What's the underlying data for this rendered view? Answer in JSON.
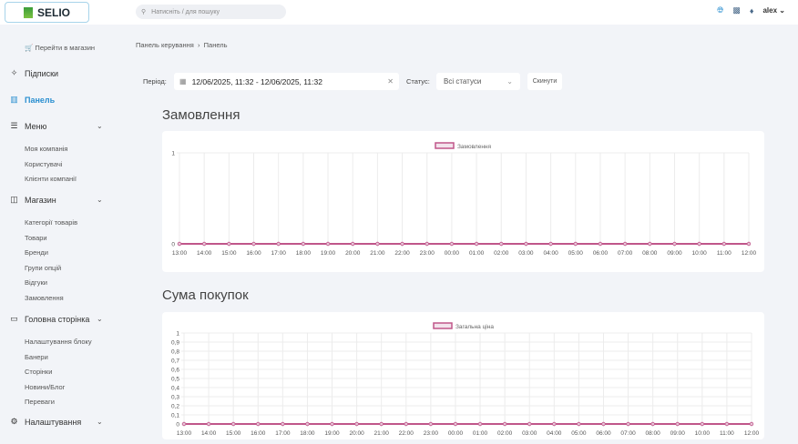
{
  "header": {
    "brand": "SELIO",
    "search_placeholder": "Натисніть / для пошуку",
    "user": "alex",
    "icons": [
      "globe-icon",
      "monitor-icon",
      "bell-icon"
    ]
  },
  "sidebar": {
    "store_link": "🛒 Перейти в магазин",
    "items": [
      {
        "label": "Підписки",
        "icon": "sparkles-icon"
      },
      {
        "label": "Панель",
        "icon": "chart-bar-icon",
        "active": true
      },
      {
        "label": "Меню",
        "icon": "menu-icon",
        "children": [
          "Моя компанія",
          "Користувачі",
          "Клієнти компанії"
        ]
      },
      {
        "label": "Магазин",
        "icon": "shopping-bag-icon",
        "children": [
          "Категорії товарів",
          "Товари",
          "Бренди",
          "Групи опцій",
          "Відгуки",
          "Замовлення"
        ]
      },
      {
        "label": "Головна сторінка",
        "icon": "box-icon",
        "children": [
          "Налаштування блоку",
          "Банери",
          "Сторінки",
          "Новини/Блог",
          "Переваги"
        ]
      },
      {
        "label": "Налаштування",
        "icon": "gear-icon",
        "children": []
      }
    ]
  },
  "breadcrumb": [
    "Панель керування",
    "Панель"
  ],
  "filters": {
    "period_label": "Період:",
    "period_value": "12/06/2025, 11:32 - 12/06/2025, 11:32",
    "status_label": "Статус:",
    "status_value": "Всі статуси",
    "reset": "Скинути"
  },
  "colors": {
    "accent": "#2a8fd0",
    "series": "#c0568a"
  },
  "chart_data": [
    {
      "type": "line",
      "title": "Замовлення",
      "series": [
        {
          "name": "Замовлення",
          "values": [
            0,
            0,
            0,
            0,
            0,
            0,
            0,
            0,
            0,
            0,
            0,
            0,
            0,
            0,
            0,
            0,
            0,
            0,
            0,
            0,
            0,
            0,
            0,
            0
          ]
        }
      ],
      "x": [
        "13:00",
        "14:00",
        "15:00",
        "16:00",
        "17:00",
        "18:00",
        "19:00",
        "20:00",
        "21:00",
        "22:00",
        "23:00",
        "00:00",
        "01:00",
        "02:00",
        "03:00",
        "04:00",
        "05:00",
        "06:00",
        "07:00",
        "08:00",
        "09:00",
        "10:00",
        "11:00",
        "12:00"
      ],
      "ylim": [
        0,
        1
      ],
      "yticks": [
        "0",
        "1"
      ],
      "legend": "top"
    },
    {
      "type": "line",
      "title": "Сума покупок",
      "series": [
        {
          "name": "Загальна ціна",
          "values": [
            0,
            0,
            0,
            0,
            0,
            0,
            0,
            0,
            0,
            0,
            0,
            0,
            0,
            0,
            0,
            0,
            0,
            0,
            0,
            0,
            0,
            0,
            0,
            0
          ]
        }
      ],
      "x": [
        "13:00",
        "14:00",
        "15:00",
        "16:00",
        "17:00",
        "18:00",
        "19:00",
        "20:00",
        "21:00",
        "22:00",
        "23:00",
        "00:00",
        "01:00",
        "02:00",
        "03:00",
        "04:00",
        "05:00",
        "06:00",
        "07:00",
        "08:00",
        "09:00",
        "10:00",
        "11:00",
        "12:00"
      ],
      "ylim": [
        0,
        1
      ],
      "yticks": [
        "0",
        "0,1",
        "0,2",
        "0,3",
        "0,4",
        "0,5",
        "0,6",
        "0,7",
        "0,8",
        "0,9",
        "1"
      ],
      "legend": "top"
    }
  ]
}
